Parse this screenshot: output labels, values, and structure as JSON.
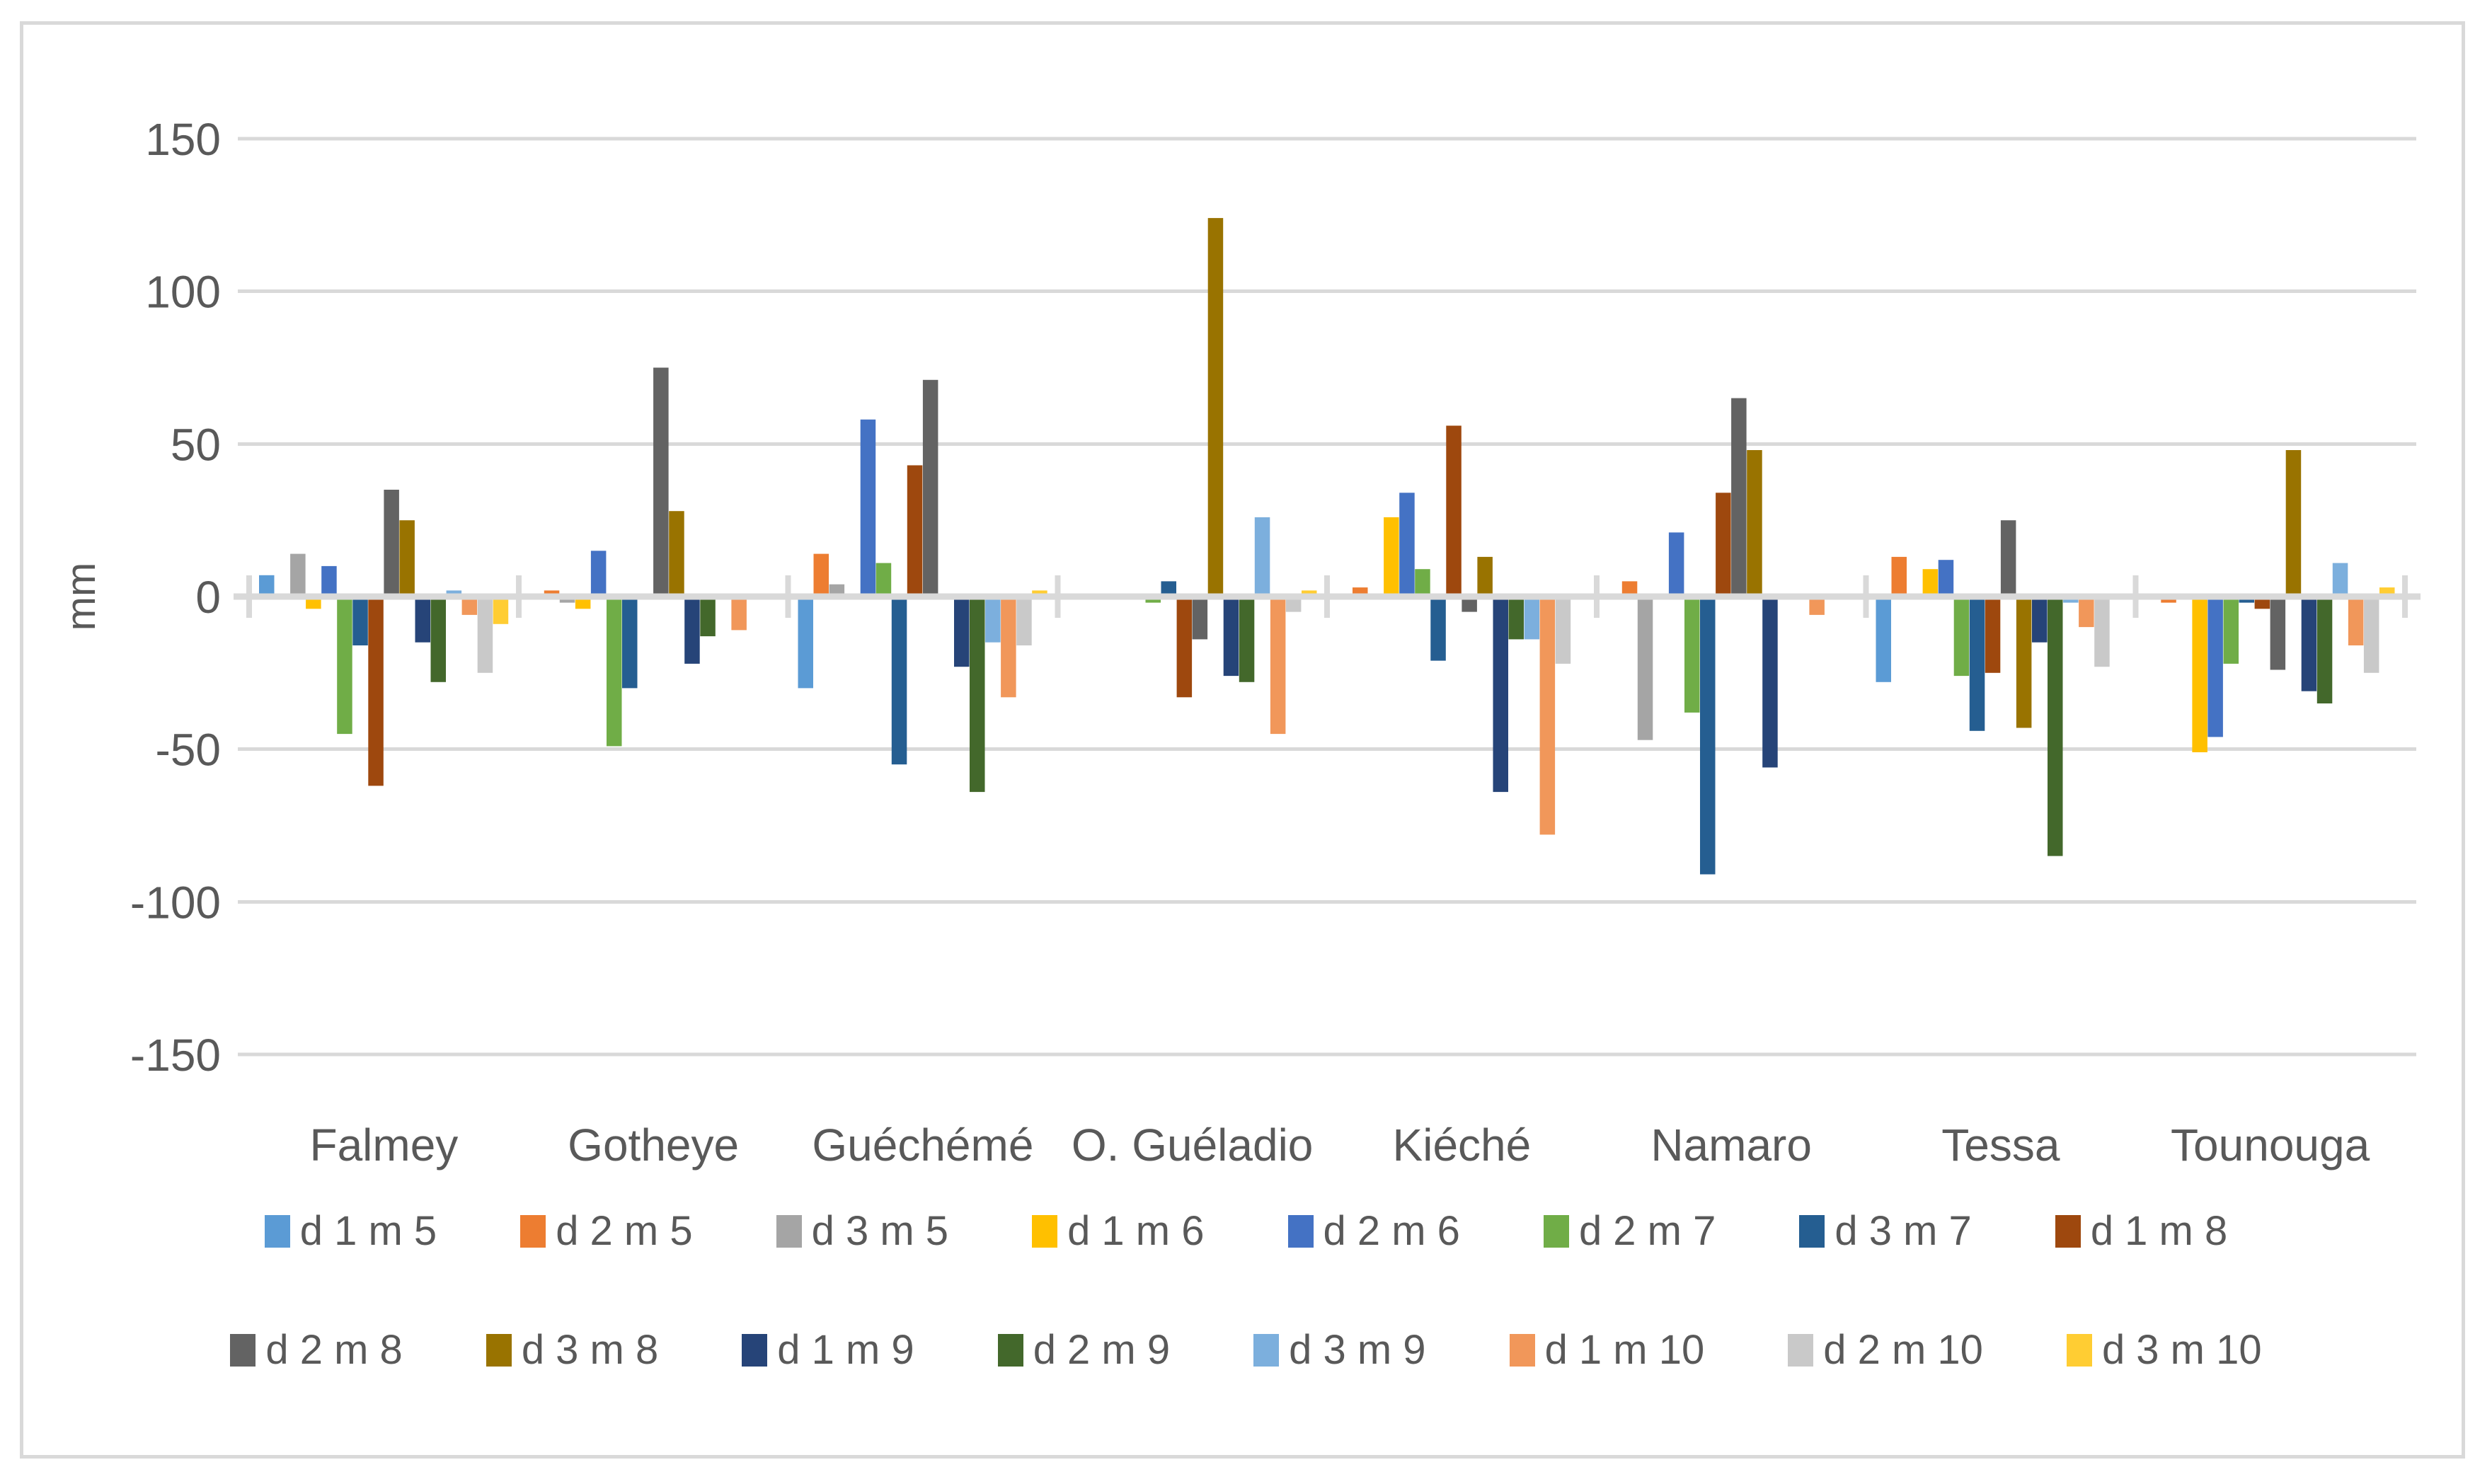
{
  "frame": {
    "background_color": "#FFFFFF",
    "border_color": "#D9D9D9",
    "grid_color": "#D9D9D9",
    "axis_color": "#D9D9D9",
    "text_color": "#595959"
  },
  "chart_data": {
    "type": "bar",
    "title": "",
    "xlabel": "",
    "ylabel": "mm",
    "ylim": [
      -150,
      150
    ],
    "yticks": [
      150,
      100,
      50,
      0,
      -50,
      -100,
      -150
    ],
    "grid": true,
    "legend_position": "bottom",
    "categories": [
      "Falmey",
      "Gotheye",
      "Guéchémé",
      "O. Guéladio",
      "Kiéché",
      "Namaro",
      "Tessa",
      "Tounouga"
    ],
    "series": [
      {
        "name": "d 1 m 5",
        "color": "#5B9BD5",
        "values": [
          7,
          0,
          -30,
          0,
          0,
          0,
          -28,
          0
        ]
      },
      {
        "name": "d 2 m 5",
        "color": "#ED7D31",
        "values": [
          0,
          2,
          14,
          0,
          3,
          5,
          13,
          -2
        ]
      },
      {
        "name": "d 3 m 5",
        "color": "#A5A5A5",
        "values": [
          14,
          -2,
          4,
          0,
          0,
          -47,
          1,
          1
        ]
      },
      {
        "name": "d 1 m 6",
        "color": "#FFC000",
        "values": [
          -4,
          -4,
          1,
          0,
          26,
          0,
          9,
          -51
        ]
      },
      {
        "name": "d 2 m 6",
        "color": "#4472C4",
        "values": [
          10,
          15,
          58,
          0,
          34,
          21,
          12,
          -46
        ]
      },
      {
        "name": "d 2 m 7",
        "color": "#70AD47",
        "values": [
          -45,
          -49,
          11,
          -2,
          9,
          -38,
          -26,
          -22
        ]
      },
      {
        "name": "d 3 m 7",
        "color": "#255E91",
        "values": [
          -16,
          -30,
          -55,
          5,
          -21,
          -91,
          -44,
          -2
        ]
      },
      {
        "name": "d 1 m 8",
        "color": "#9E480E",
        "values": [
          -62,
          0,
          43,
          -33,
          56,
          34,
          -25,
          -4
        ]
      },
      {
        "name": "d 2 m 8",
        "color": "#636363",
        "values": [
          35,
          75,
          71,
          -14,
          -5,
          65,
          25,
          -24
        ]
      },
      {
        "name": "d 3 m 8",
        "color": "#997300",
        "values": [
          25,
          28,
          0,
          124,
          13,
          48,
          -43,
          48
        ]
      },
      {
        "name": "d 1 m 9",
        "color": "#264478",
        "values": [
          -15,
          -22,
          -23,
          -26,
          -64,
          -56,
          -15,
          -31
        ]
      },
      {
        "name": "d 2 m 9",
        "color": "#43682B",
        "values": [
          -28,
          -13,
          -64,
          -28,
          -14,
          0,
          -85,
          -35
        ]
      },
      {
        "name": "d 3 m 9",
        "color": "#7CAFDD",
        "values": [
          2,
          0,
          -15,
          26,
          -14,
          1,
          -2,
          11
        ]
      },
      {
        "name": "d 1 m 10",
        "color": "#F1975A",
        "values": [
          -6,
          -11,
          -33,
          -45,
          -78,
          -6,
          -10,
          -16
        ]
      },
      {
        "name": "d 2 m 10",
        "color": "#C9C9C9",
        "values": [
          -25,
          0,
          -16,
          -5,
          -22,
          1,
          -23,
          -25
        ]
      },
      {
        "name": "d 3 m 10",
        "color": "#FFCD33",
        "values": [
          -9,
          0,
          2,
          2,
          0,
          0,
          0,
          3
        ]
      }
    ]
  }
}
